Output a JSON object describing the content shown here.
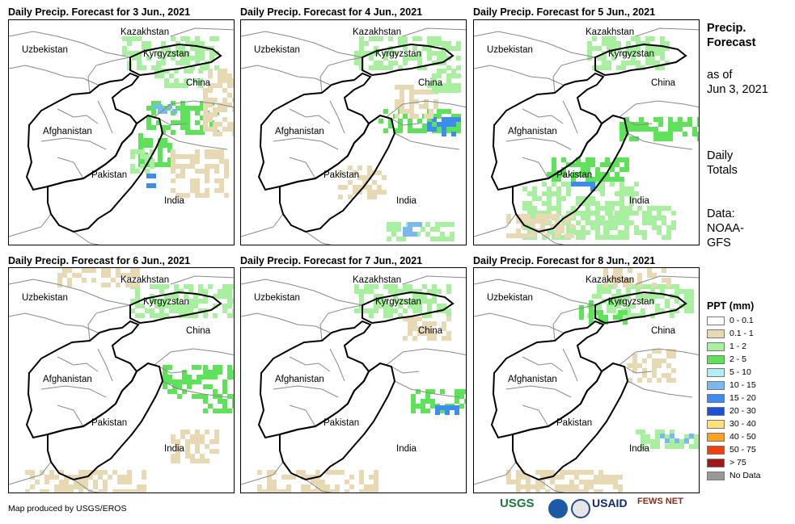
{
  "panels": [
    {
      "title": "Daily Precip. Forecast for 3 Jun., 2021"
    },
    {
      "title": "Daily Precip. Forecast for 4 Jun., 2021"
    },
    {
      "title": "Daily Precip. Forecast for 5 Jun., 2021"
    },
    {
      "title": "Daily Precip. Forecast for 6 Jun., 2021"
    },
    {
      "title": "Daily Precip. Forecast for 7 Jun., 2021"
    },
    {
      "title": "Daily Precip. Forecast for 8 Jun., 2021"
    }
  ],
  "country_labels": {
    "kazakhstan": "Kazakhstan",
    "uzbekistan": "Uzbekistan",
    "kyrgyzstan": "Kyrgyzstan",
    "china": "China",
    "afghanistan": "Afghanistan",
    "pakistan": "Pakistan",
    "india": "India"
  },
  "side_panel": {
    "title_line1": "Precip.",
    "title_line2": "Forecast",
    "asof_line1": "as of",
    "asof_line2": "Jun 3, 2021",
    "totals_line1": "Daily",
    "totals_line2": "Totals",
    "data_line1": "Data:",
    "data_line2": "NOAA-",
    "data_line3": "GFS"
  },
  "legend": {
    "title": "PPT (mm)",
    "items": [
      {
        "label": "0 - 0.1",
        "color": "#ffffff"
      },
      {
        "label": "0.1 - 1",
        "color": "#e8d9b5"
      },
      {
        "label": "1 - 2",
        "color": "#a8f0a0"
      },
      {
        "label": "2 - 5",
        "color": "#5ee25a"
      },
      {
        "label": "5 - 10",
        "color": "#b0f0f5"
      },
      {
        "label": "10 - 15",
        "color": "#7ab8f0"
      },
      {
        "label": "15 - 20",
        "color": "#3d8cf0"
      },
      {
        "label": "20 - 30",
        "color": "#1c50d8"
      },
      {
        "label": "30 - 40",
        "color": "#ffe07a"
      },
      {
        "label": "40 - 50",
        "color": "#ffa020"
      },
      {
        "label": "50 - 75",
        "color": "#f04010"
      },
      {
        "label": "> 75",
        "color": "#a01818"
      },
      {
        "label": "No Data",
        "color": "#999999"
      }
    ]
  },
  "credit": "Map produced by USGS/EROS",
  "logos": {
    "usgs": "USGS",
    "usaid": "USAID",
    "fews": "FEWS NET"
  }
}
